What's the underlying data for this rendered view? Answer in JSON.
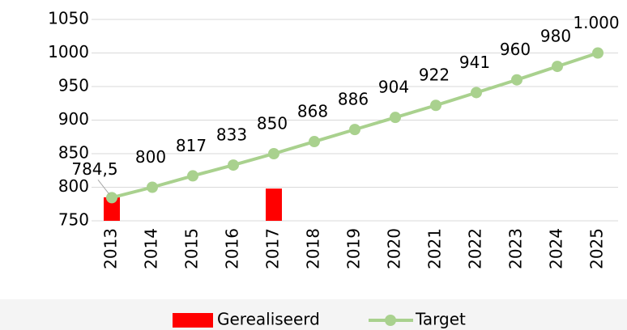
{
  "chart_data": {
    "type": "combo",
    "categories": [
      "2013",
      "2014",
      "2015",
      "2016",
      "2017",
      "2018",
      "2019",
      "2020",
      "2021",
      "2022",
      "2023",
      "2024",
      "2025"
    ],
    "series": [
      {
        "name": "Gerealiseerd",
        "type": "bar",
        "color": "#ff0000",
        "values": [
          785,
          null,
          null,
          null,
          798,
          null,
          null,
          null,
          null,
          null,
          null,
          null,
          null
        ]
      },
      {
        "name": "Target",
        "type": "line",
        "color": "#a9d18e",
        "values": [
          784.5,
          800,
          817,
          833,
          850,
          868,
          886,
          904,
          922,
          941,
          960,
          980,
          1000
        ],
        "value_labels": [
          "784,5",
          "800",
          "817",
          "833",
          "850",
          "868",
          "886",
          "904",
          "922",
          "941",
          "960",
          "980",
          "1.000"
        ]
      }
    ],
    "ylim": [
      750,
      1050
    ],
    "yticks": [
      750,
      800,
      850,
      900,
      950,
      1000,
      1050
    ],
    "grid": true,
    "legend": "bottom"
  }
}
